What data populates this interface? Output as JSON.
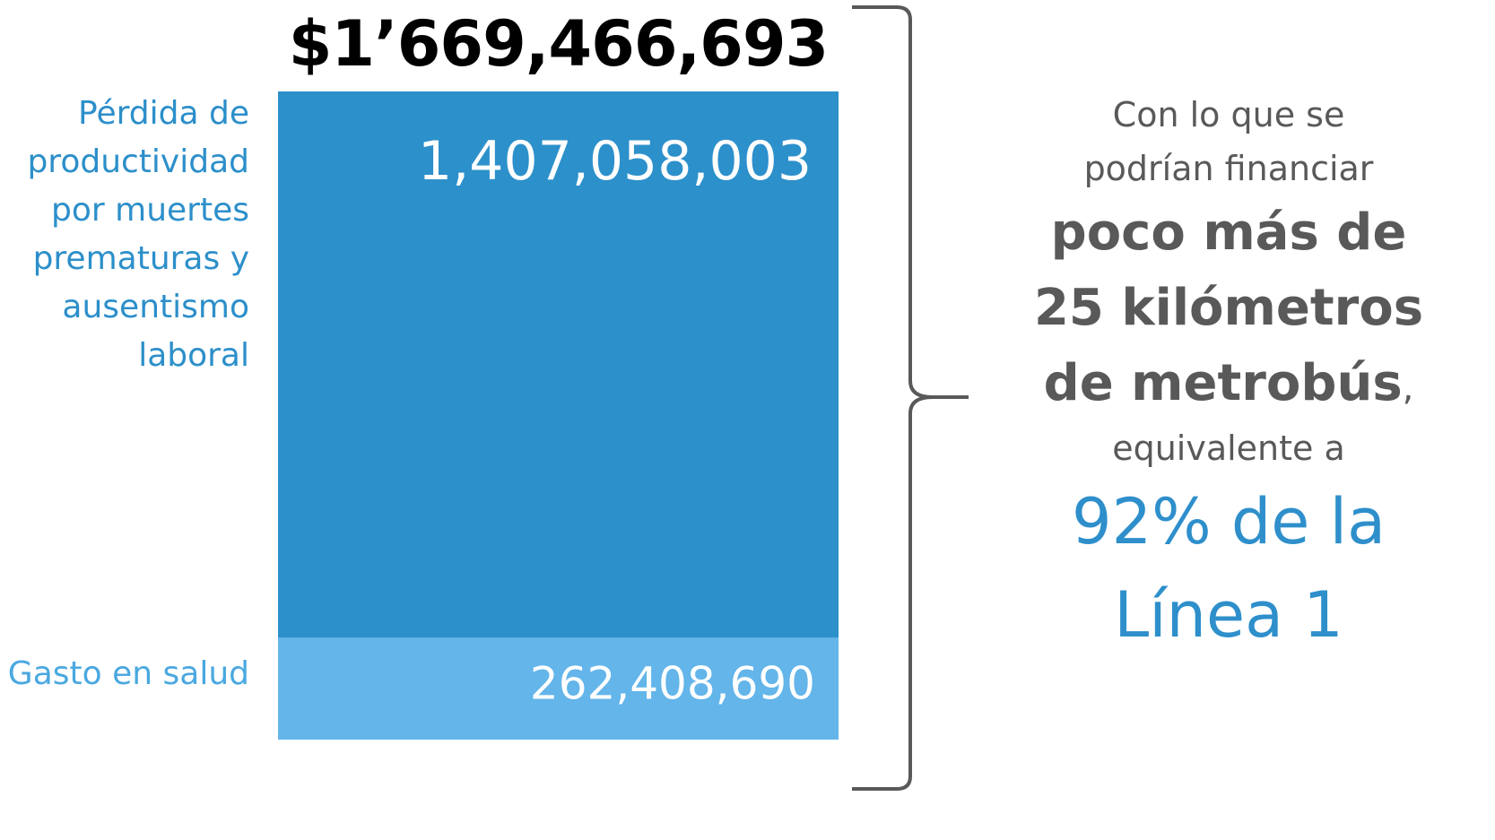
{
  "colors": {
    "productivity": "#2c90cb",
    "health": "#63b5ea",
    "value_text": "#ffffff",
    "label_productivity": "#2c8fca",
    "label_health": "#4aa8e0",
    "brace": "#595959",
    "highlight": "#2e8fcb",
    "body_text": "#595959"
  },
  "chart_data": {
    "type": "bar",
    "stacked": true,
    "title": "$1’669,466,693",
    "categories": [
      "total"
    ],
    "series": [
      {
        "name": "Gasto en salud",
        "values": [
          262408690
        ],
        "value_label": "262,408,690"
      },
      {
        "name": "Pérdida de productividad por muertes prematuras y ausentismo laboral",
        "values": [
          1407058003
        ],
        "value_label": "1,407,058,003"
      }
    ],
    "ylim": [
      0,
      1669466693
    ],
    "grid": false,
    "legend": "left"
  },
  "labels": {
    "productivity": "Pérdida de productividad por muertes prematuras y ausentismo laboral",
    "health": "Gasto en salud"
  },
  "summary": {
    "line1": "Con lo que se",
    "line2": "podrían financiar",
    "bold1": "poco más de",
    "bold2": "25 kilómetros",
    "bold3": "de metrobús",
    "comma": ",",
    "line3": "equivalente a",
    "highlight1": "92% de la",
    "highlight2": "Línea 1"
  }
}
